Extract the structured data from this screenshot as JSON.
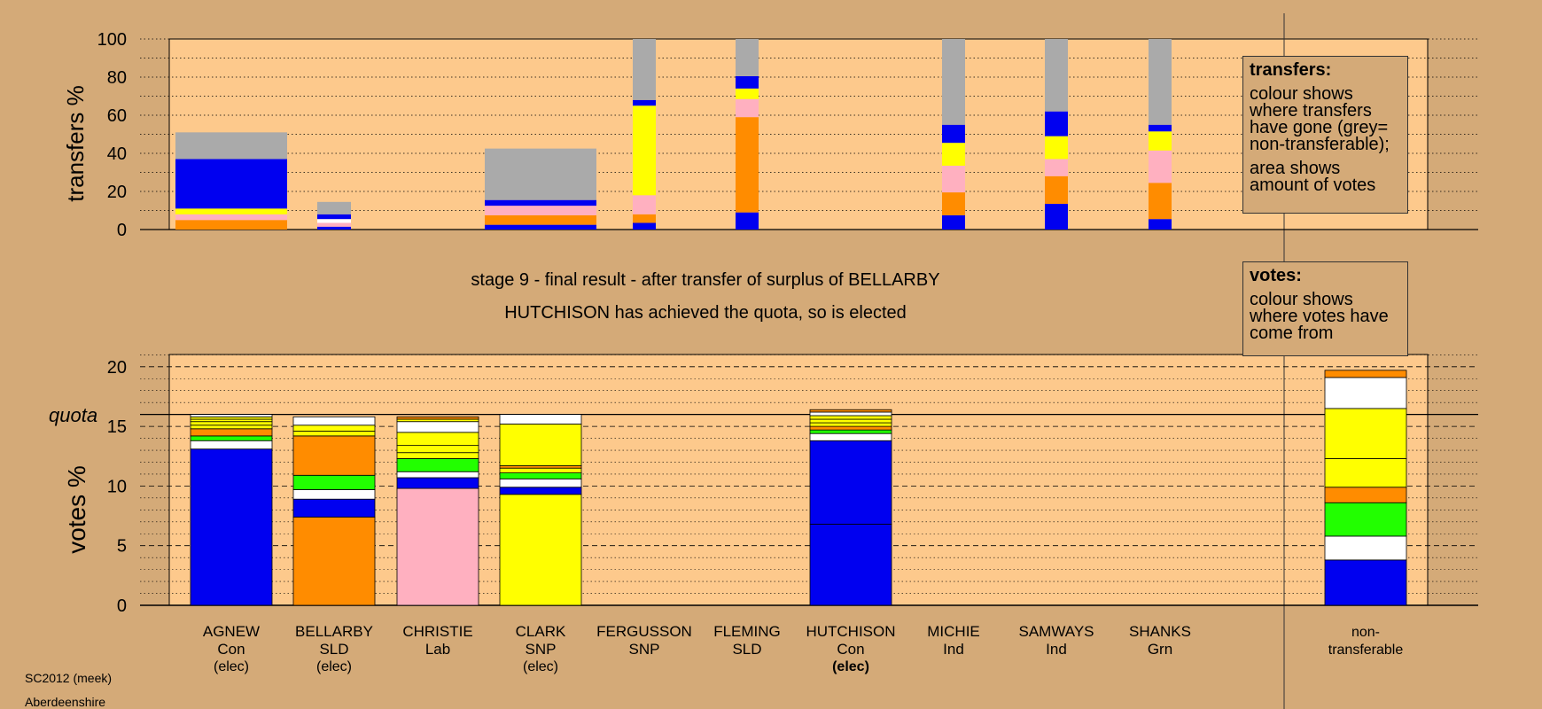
{
  "colors": {
    "background": "#d4aa78",
    "plot_background": "#fdc98c",
    "Con": "#0000f0",
    "SLD": "#ff8c00",
    "Lab": "#ffb0c0",
    "SNP": "#ffff00",
    "Ind": "#ffffff",
    "Grn": "#22ff00",
    "non_transferable": "#aaaaaa"
  },
  "headline": {
    "line1": "stage 9 - final result - after transfer of surplus of BELLARBY",
    "line2": "HUTCHISON has achieved the quota, so is elected"
  },
  "legend_transfers": {
    "title": "transfers:",
    "p1": "colour shows where transfers have gone (grey= non-transferable);",
    "p2": "area shows amount of votes"
  },
  "legend_votes": {
    "title": "votes:",
    "p1": "colour shows where votes have come from"
  },
  "footer": {
    "line1": "SC2012 (meek)",
    "line2": "Aberdeenshire"
  },
  "candidates": [
    {
      "name": "AGNEW",
      "party": "Con",
      "status": "(elec)",
      "status_bold": false
    },
    {
      "name": "BELLARBY",
      "party": "SLD",
      "status": "(elec)",
      "status_bold": false
    },
    {
      "name": "CHRISTIE",
      "party": "Lab",
      "status": "",
      "status_bold": false
    },
    {
      "name": "CLARK",
      "party": "SNP",
      "status": "(elec)",
      "status_bold": false
    },
    {
      "name": "FERGUSSON",
      "party": "SNP",
      "status": "",
      "status_bold": false
    },
    {
      "name": "FLEMING",
      "party": "SLD",
      "status": "",
      "status_bold": false
    },
    {
      "name": "HUTCHISON",
      "party": "Con",
      "status": "(elec)",
      "status_bold": true
    },
    {
      "name": "MICHIE",
      "party": "Ind",
      "status": "",
      "status_bold": false
    },
    {
      "name": "SAMWAYS",
      "party": "Ind",
      "status": "",
      "status_bold": false
    },
    {
      "name": "SHANKS",
      "party": "Grn",
      "status": "",
      "status_bold": false
    }
  ],
  "nontransferable_label": {
    "line1": "non-",
    "line2": "transferable"
  },
  "chart_data": [
    {
      "type": "bar",
      "stacked": true,
      "panel": "transfers",
      "ylabel": "transfers %",
      "ylim": [
        0,
        100
      ],
      "yticks": [
        0,
        20,
        40,
        60,
        80,
        100
      ],
      "grid": true,
      "categories": [
        "AGNEW",
        "BELLARBY",
        "CHRISTIE",
        "CLARK",
        "FERGUSSON",
        "FLEMING",
        "HUTCHISON",
        "MICHIE",
        "SAMWAYS",
        "SHANKS"
      ],
      "bars": [
        {
          "category": "AGNEW",
          "width": "wide",
          "segments": [
            {
              "color": "SLD",
              "value": 5
            },
            {
              "color": "Lab",
              "value": 3
            },
            {
              "color": "SNP",
              "value": 3
            },
            {
              "color": "Con",
              "value": 26
            },
            {
              "color": "non_transferable",
              "value": 14
            }
          ]
        },
        {
          "category": "BELLARBY",
          "width": "medium",
          "segments": [
            {
              "color": "Con",
              "value": 1.5
            },
            {
              "color": "Lab",
              "value": 2
            },
            {
              "color": "Ind",
              "value": 2
            },
            {
              "color": "Con",
              "value": 2.5
            },
            {
              "color": "non_transferable",
              "value": 6.5
            }
          ]
        },
        {
          "category": "CLARK",
          "width": "wide",
          "segments": [
            {
              "color": "Con",
              "value": 2.5
            },
            {
              "color": "SLD",
              "value": 5
            },
            {
              "color": "Lab",
              "value": 5
            },
            {
              "color": "Con",
              "value": 3
            },
            {
              "color": "non_transferable",
              "value": 27
            }
          ]
        },
        {
          "category": "FERGUSSON",
          "width": "narrow",
          "segments": [
            {
              "color": "Con",
              "value": 3.5
            },
            {
              "color": "SLD",
              "value": 4.5
            },
            {
              "color": "Lab",
              "value": 10
            },
            {
              "color": "SNP",
              "value": 47
            },
            {
              "color": "Con",
              "value": 3
            },
            {
              "color": "non_transferable",
              "value": 32
            }
          ]
        },
        {
          "category": "FLEMING",
          "width": "narrow",
          "segments": [
            {
              "color": "Con",
              "value": 9
            },
            {
              "color": "SLD",
              "value": 50
            },
            {
              "color": "Lab",
              "value": 9.5
            },
            {
              "color": "SNP",
              "value": 5.5
            },
            {
              "color": "Con",
              "value": 6.5
            },
            {
              "color": "non_transferable",
              "value": 19.5
            }
          ]
        },
        {
          "category": "MICHIE",
          "width": "narrow",
          "segments": [
            {
              "color": "Con",
              "value": 7.5
            },
            {
              "color": "SLD",
              "value": 12
            },
            {
              "color": "Lab",
              "value": 14
            },
            {
              "color": "SNP",
              "value": 12
            },
            {
              "color": "Con",
              "value": 9.5
            },
            {
              "color": "non_transferable",
              "value": 45
            }
          ]
        },
        {
          "category": "SAMWAYS",
          "width": "narrow",
          "segments": [
            {
              "color": "Con",
              "value": 13.5
            },
            {
              "color": "SLD",
              "value": 14.5
            },
            {
              "color": "Lab",
              "value": 9
            },
            {
              "color": "SNP",
              "value": 12
            },
            {
              "color": "Con",
              "value": 13
            },
            {
              "color": "non_transferable",
              "value": 38
            }
          ]
        },
        {
          "category": "SHANKS",
          "width": "narrow",
          "segments": [
            {
              "color": "Con",
              "value": 5.5
            },
            {
              "color": "SLD",
              "value": 19
            },
            {
              "color": "Lab",
              "value": 17
            },
            {
              "color": "SNP",
              "value": 10
            },
            {
              "color": "Con",
              "value": 3.5
            },
            {
              "color": "non_transferable",
              "value": 45
            }
          ]
        }
      ]
    },
    {
      "type": "bar",
      "stacked": true,
      "panel": "votes",
      "ylabel": "votes %",
      "ylim": [
        0,
        21
      ],
      "yticks": [
        0,
        5,
        10,
        15,
        20
      ],
      "quota": 16,
      "quota_label": "quota",
      "grid": true,
      "categories": [
        "AGNEW",
        "BELLARBY",
        "CHRISTIE",
        "CLARK",
        "FERGUSSON",
        "FLEMING",
        "HUTCHISON",
        "MICHIE",
        "SAMWAYS",
        "SHANKS",
        "non-transferable"
      ],
      "bars": [
        {
          "category": "AGNEW",
          "segments": [
            {
              "color": "Con",
              "value": 13.1
            },
            {
              "color": "Ind",
              "value": 0.7
            },
            {
              "color": "Grn",
              "value": 0.4
            },
            {
              "color": "SLD",
              "value": 0.6
            },
            {
              "color": "SNP",
              "value": 0.3
            },
            {
              "color": "SNP",
              "value": 0.3
            },
            {
              "color": "SNP",
              "value": 0.2
            },
            {
              "color": "SNP",
              "value": 0.2
            },
            {
              "color": "Ind",
              "value": 0.2
            }
          ]
        },
        {
          "category": "BELLARBY",
          "segments": [
            {
              "color": "SLD",
              "value": 7.4
            },
            {
              "color": "Con",
              "value": 1.5
            },
            {
              "color": "Ind",
              "value": 0.8
            },
            {
              "color": "Grn",
              "value": 1.2
            },
            {
              "color": "SLD",
              "value": 3.3
            },
            {
              "color": "SNP",
              "value": 0.4
            },
            {
              "color": "SNP",
              "value": 0.5
            },
            {
              "color": "Ind",
              "value": 0.7
            }
          ]
        },
        {
          "category": "CHRISTIE",
          "segments": [
            {
              "color": "Lab",
              "value": 9.8
            },
            {
              "color": "Con",
              "value": 0.9
            },
            {
              "color": "Ind",
              "value": 0.5
            },
            {
              "color": "Grn",
              "value": 1.1
            },
            {
              "color": "SNP",
              "value": 0.5
            },
            {
              "color": "SNP",
              "value": 0.6
            },
            {
              "color": "SNP",
              "value": 1.1
            },
            {
              "color": "Ind",
              "value": 0.9
            },
            {
              "color": "SNP",
              "value": 0.2
            },
            {
              "color": "SLD",
              "value": 0.2
            }
          ]
        },
        {
          "category": "CLARK",
          "segments": [
            {
              "color": "SNP",
              "value": 9.3
            },
            {
              "color": "Con",
              "value": 0.6
            },
            {
              "color": "Ind",
              "value": 0.7
            },
            {
              "color": "Grn",
              "value": 0.5
            },
            {
              "color": "SNP",
              "value": 0.4
            },
            {
              "color": "SLD",
              "value": 0.2
            },
            {
              "color": "SNP",
              "value": 3.5
            },
            {
              "color": "Ind",
              "value": 0.8
            }
          ]
        },
        {
          "category": "HUTCHISON",
          "segments": [
            {
              "color": "Con",
              "value": 6.8
            },
            {
              "color": "Con",
              "value": 7.0
            },
            {
              "color": "Ind",
              "value": 0.6
            },
            {
              "color": "Grn",
              "value": 0.3
            },
            {
              "color": "SLD",
              "value": 0.3
            },
            {
              "color": "SNP",
              "value": 0.3
            },
            {
              "color": "SNP",
              "value": 0.3
            },
            {
              "color": "SNP",
              "value": 0.3
            },
            {
              "color": "Ind",
              "value": 0.3
            },
            {
              "color": "SLD",
              "value": 0.2
            }
          ]
        },
        {
          "category": "non-transferable",
          "segments": [
            {
              "color": "Con",
              "value": 3.8
            },
            {
              "color": "Ind",
              "value": 2.0
            },
            {
              "color": "Grn",
              "value": 2.8
            },
            {
              "color": "SLD",
              "value": 1.3
            },
            {
              "color": "SNP",
              "value": 2.4
            },
            {
              "color": "SNP",
              "value": 4.2
            },
            {
              "color": "Ind",
              "value": 2.6
            },
            {
              "color": "SLD",
              "value": 0.6
            }
          ]
        }
      ]
    }
  ]
}
